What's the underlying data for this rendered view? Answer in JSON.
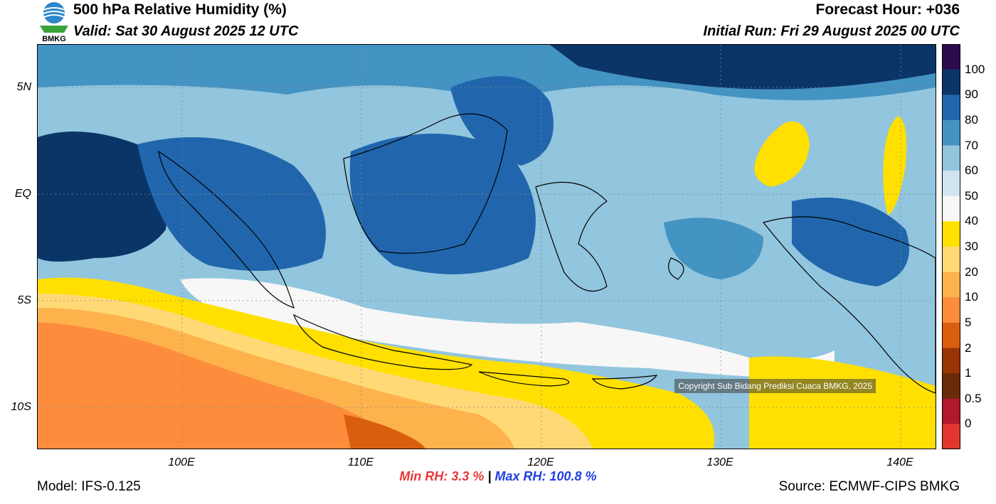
{
  "header": {
    "title": "500 hPa Relative Humidity (%)",
    "valid": "Valid: Sat 30 August 2025 12 UTC",
    "forecast_hour": "Forecast Hour: +036",
    "initial_run": "Initial Run: Fri 29 August 2025 00 UTC",
    "logo_text": "BMKG"
  },
  "axes": {
    "lat_labels": [
      "5N",
      "EQ",
      "5S",
      "10S"
    ],
    "lon_labels": [
      "100E",
      "110E",
      "120E",
      "130E",
      "140E"
    ]
  },
  "colorbar": {
    "labels": [
      "100",
      "90",
      "80",
      "70",
      "60",
      "50",
      "40",
      "30",
      "20",
      "10",
      "5",
      "2",
      "1",
      "0.5",
      "0"
    ],
    "colors": [
      "#2c0b4f",
      "#0b3567",
      "#2166ac",
      "#4393c3",
      "#92c5de",
      "#d1e5f0",
      "#f7f7f7",
      "#ffe000",
      "#fed976",
      "#feb24c",
      "#fd8d3c",
      "#d95f0e",
      "#993404",
      "#6b2a0a",
      "#b2182b",
      "#e3362e"
    ]
  },
  "stats": {
    "min_label": "Min RH:",
    "min_value": "3.3 %",
    "separator": "|",
    "max_label": "Max RH:",
    "max_value": "100.8 %"
  },
  "footer": {
    "model": "Model: IFS-0.125",
    "source": "Source: ECMWF-CIPS BMKG",
    "copyright": "Copyright Sub Bidang Prediksi Cuaca BMKG, 2025"
  }
}
